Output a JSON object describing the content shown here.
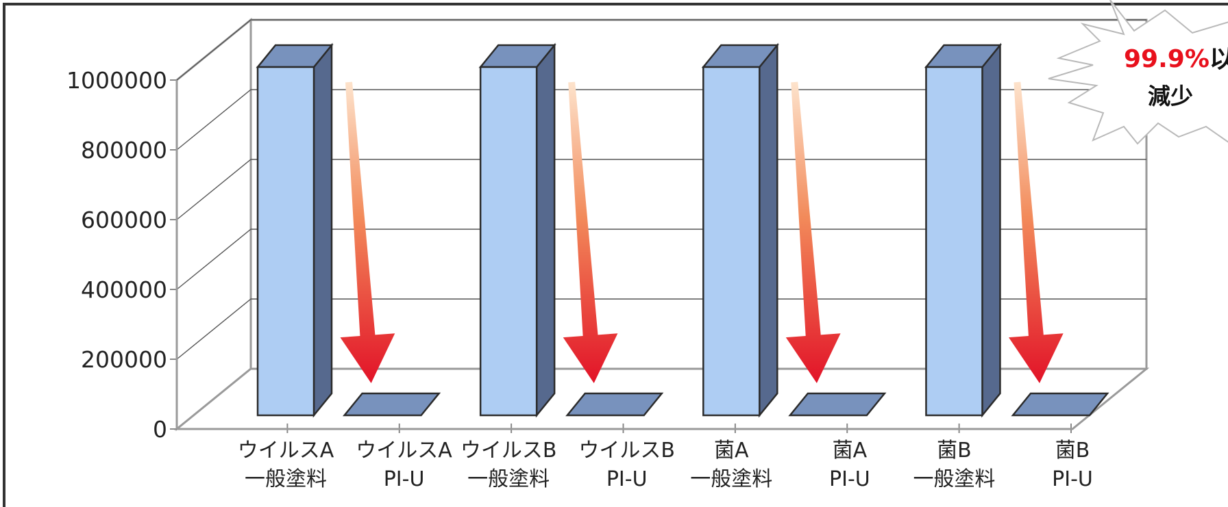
{
  "chart_data": {
    "type": "bar",
    "categories": [
      [
        "ウイルスA",
        "一般塗料"
      ],
      [
        "ウイルスA",
        "PI-U"
      ],
      [
        "ウイルスB",
        "一般塗料"
      ],
      [
        "ウイルスB",
        "PI-U"
      ],
      [
        "菌A",
        "一般塗料"
      ],
      [
        "菌A",
        "PI-U"
      ],
      [
        "菌B",
        "一般塗料"
      ],
      [
        "菌B",
        "PI-U"
      ]
    ],
    "values": [
      1000000,
      0,
      1000000,
      0,
      1000000,
      0,
      1000000,
      0
    ],
    "ylim": [
      0,
      1000000
    ],
    "yticks": [
      "0",
      "200000",
      "400000",
      "600000",
      "800000",
      "1000000"
    ],
    "grid": true,
    "style": "3d",
    "colors": {
      "bar_front": "#aecdf3",
      "bar_side": "#56698e",
      "bar_top": "#7892bd",
      "arrow_end": "#e21328",
      "arrow_start": "#fde3cc"
    },
    "annotations": [
      {
        "type": "down-arrow",
        "from_category": 0,
        "to_category": 1
      },
      {
        "type": "down-arrow",
        "from_category": 2,
        "to_category": 3
      },
      {
        "type": "down-arrow",
        "from_category": 4,
        "to_category": 5
      },
      {
        "type": "down-arrow",
        "from_category": 6,
        "to_category": 7
      }
    ],
    "callout": {
      "value_text": "99.9%",
      "suffix_text": "以",
      "line2_text": "減少"
    }
  }
}
